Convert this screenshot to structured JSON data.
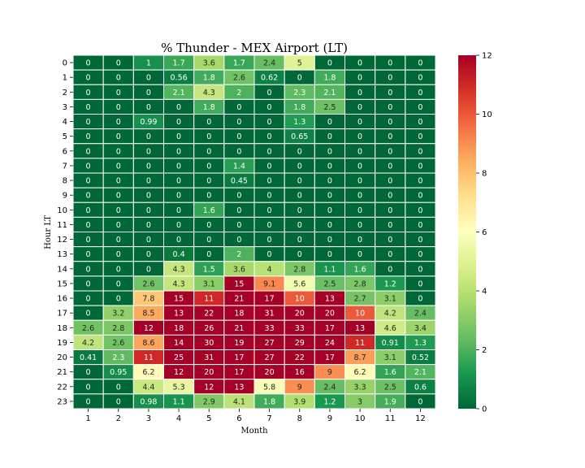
{
  "chart_data": {
    "type": "heatmap",
    "title": "% Thunder - MEX Airport (LT)",
    "xlabel": "Month",
    "ylabel": "Hour LT",
    "x_categories": [
      "1",
      "2",
      "3",
      "4",
      "5",
      "6",
      "7",
      "8",
      "9",
      "10",
      "11",
      "12"
    ],
    "y_categories": [
      "0",
      "1",
      "2",
      "3",
      "4",
      "5",
      "6",
      "7",
      "8",
      "9",
      "10",
      "11",
      "12",
      "13",
      "14",
      "15",
      "16",
      "17",
      "18",
      "19",
      "20",
      "21",
      "22",
      "23"
    ],
    "color_scale": {
      "min": 0,
      "max": 12,
      "ticks": [
        0,
        2,
        4,
        6,
        8,
        10,
        12
      ],
      "colormap": "RdYlGn_r"
    },
    "values": [
      [
        "0",
        "0",
        "1",
        "1.7",
        "3.6",
        "1.7",
        "2.4",
        "5",
        "0",
        "0",
        "0",
        "0"
      ],
      [
        "0",
        "0",
        "0",
        "0.56",
        "1.8",
        "2.6",
        "0.62",
        "0",
        "1.8",
        "0",
        "0",
        "0"
      ],
      [
        "0",
        "0",
        "0",
        "2.1",
        "4.3",
        "2",
        "0",
        "2.3",
        "2.1",
        "0",
        "0",
        "0"
      ],
      [
        "0",
        "0",
        "0",
        "0",
        "1.8",
        "0",
        "0",
        "1.8",
        "2.5",
        "0",
        "0",
        "0"
      ],
      [
        "0",
        "0",
        "0.99",
        "0",
        "0",
        "0",
        "0",
        "1.3",
        "0",
        "0",
        "0",
        "0"
      ],
      [
        "0",
        "0",
        "0",
        "0",
        "0",
        "0",
        "0",
        "0.65",
        "0",
        "0",
        "0",
        "0"
      ],
      [
        "0",
        "0",
        "0",
        "0",
        "0",
        "0",
        "0",
        "0",
        "0",
        "0",
        "0",
        "0"
      ],
      [
        "0",
        "0",
        "0",
        "0",
        "0",
        "1.4",
        "0",
        "0",
        "0",
        "0",
        "0",
        "0"
      ],
      [
        "0",
        "0",
        "0",
        "0",
        "0",
        "0.45",
        "0",
        "0",
        "0",
        "0",
        "0",
        "0"
      ],
      [
        "0",
        "0",
        "0",
        "0",
        "0",
        "0",
        "0",
        "0",
        "0",
        "0",
        "0",
        "0"
      ],
      [
        "0",
        "0",
        "0",
        "0",
        "1.6",
        "0",
        "0",
        "0",
        "0",
        "0",
        "0",
        "0"
      ],
      [
        "0",
        "0",
        "0",
        "0",
        "0",
        "0",
        "0",
        "0",
        "0",
        "0",
        "0",
        "0"
      ],
      [
        "0",
        "0",
        "0",
        "0",
        "0",
        "0",
        "0",
        "0",
        "0",
        "0",
        "0",
        "0"
      ],
      [
        "0",
        "0",
        "0",
        "0.4",
        "0",
        "2",
        "0",
        "0",
        "0",
        "0",
        "0",
        "0"
      ],
      [
        "0",
        "0",
        "0",
        "4.3",
        "1.5",
        "3.6",
        "4",
        "2.8",
        "1.1",
        "1.6",
        "0",
        "0"
      ],
      [
        "0",
        "0",
        "2.6",
        "4.3",
        "3.1",
        "15",
        "9.1",
        "5.6",
        "2.5",
        "2.8",
        "1.2",
        "0"
      ],
      [
        "0",
        "0",
        "7.8",
        "15",
        "11",
        "21",
        "17",
        "10",
        "13",
        "2.7",
        "3.1",
        "0"
      ],
      [
        "0",
        "3.2",
        "8.5",
        "13",
        "22",
        "18",
        "31",
        "20",
        "20",
        "10",
        "4.2",
        "2.4"
      ],
      [
        "2.6",
        "2.8",
        "12",
        "18",
        "26",
        "21",
        "33",
        "33",
        "17",
        "13",
        "4.6",
        "3.4"
      ],
      [
        "4.2",
        "2.6",
        "8.6",
        "14",
        "30",
        "19",
        "27",
        "29",
        "24",
        "11",
        "0.91",
        "1.3"
      ],
      [
        "0.41",
        "2.3",
        "11",
        "25",
        "31",
        "17",
        "27",
        "22",
        "17",
        "8.7",
        "3.1",
        "0.52"
      ],
      [
        "0",
        "0.95",
        "6.2",
        "12",
        "20",
        "17",
        "20",
        "16",
        "9",
        "6.2",
        "1.6",
        "2.1"
      ],
      [
        "0",
        "0",
        "4.4",
        "5.3",
        "12",
        "13",
        "5.8",
        "9",
        "2.4",
        "3.3",
        "2.5",
        "0.6"
      ],
      [
        "0",
        "0",
        "0.98",
        "1.1",
        "2.9",
        "4.1",
        "1.8",
        "3.9",
        "1.2",
        "3",
        "1.9",
        "0"
      ]
    ]
  }
}
